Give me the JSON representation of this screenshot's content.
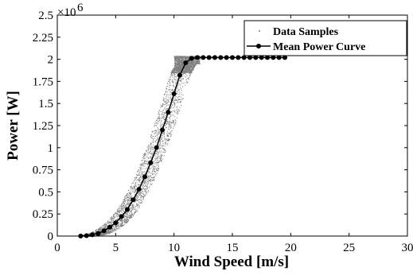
{
  "chart_data": {
    "type": "scatter",
    "title": "",
    "xlabel": "Wind Speed [m/s]",
    "ylabel": "Power [W]",
    "y_multiplier": "×10",
    "y_multiplier_exponent": "6",
    "xlim": [
      0,
      30
    ],
    "ylim": [
      0,
      2.5
    ],
    "x_ticks": [
      0,
      5,
      10,
      15,
      20,
      25,
      30
    ],
    "x_tick_labels": [
      "0",
      "5",
      "10",
      "15",
      "20",
      "25",
      "30"
    ],
    "y_ticks": [
      0,
      0.25,
      0.5,
      0.75,
      1,
      1.25,
      1.5,
      1.75,
      2,
      2.25,
      2.5
    ],
    "y_tick_labels": [
      "0",
      "0.25",
      "0.5",
      "0.75",
      "1",
      "1.25",
      "1.5",
      "1.75",
      "2",
      "2.25",
      "2.5"
    ],
    "grid": false,
    "legend_position": "top-right",
    "series": [
      {
        "name": "Data Samples",
        "kind": "scatter-band",
        "color": "#808080",
        "x_range": [
          2.0,
          12.2
        ],
        "band_half_width_ms": 0.9,
        "y_max": 2.04
      },
      {
        "name": "Mean Power Curve",
        "kind": "line-markers",
        "color": "#000000",
        "x": [
          2.0,
          2.5,
          3.0,
          3.5,
          4.0,
          4.5,
          5.0,
          5.5,
          6.0,
          6.5,
          7.0,
          7.5,
          8.0,
          8.5,
          9.0,
          9.5,
          10.0,
          10.5,
          11.0,
          11.5,
          12.0,
          12.5,
          13.0,
          13.5,
          14.0,
          14.5,
          15.0,
          15.5,
          16.0,
          16.5,
          17.0,
          17.5,
          18.0,
          18.5,
          19.0,
          19.5
        ],
        "y": [
          0.0,
          0.005,
          0.015,
          0.03,
          0.06,
          0.1,
          0.15,
          0.22,
          0.3,
          0.41,
          0.53,
          0.67,
          0.83,
          1.0,
          1.2,
          1.4,
          1.61,
          1.82,
          1.96,
          2.01,
          2.02,
          2.02,
          2.02,
          2.02,
          2.02,
          2.02,
          2.02,
          2.02,
          2.02,
          2.02,
          2.02,
          2.02,
          2.02,
          2.02,
          2.02,
          2.02
        ]
      }
    ]
  }
}
